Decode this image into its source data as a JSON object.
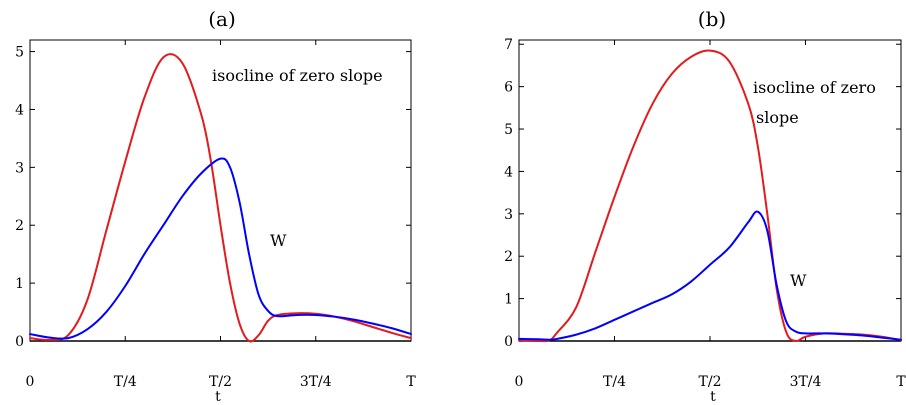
{
  "chart_data": [
    {
      "type": "line",
      "title": "(a)",
      "xlabel": "t",
      "ylabel": "",
      "xlim": [
        0,
        1
      ],
      "ylim": [
        0,
        5.2
      ],
      "x_ticks": [
        {
          "value": 0,
          "label": "0"
        },
        {
          "value": 0.25,
          "label": "T/4"
        },
        {
          "value": 0.5,
          "label": "T/2"
        },
        {
          "value": 0.75,
          "label": "3T/4"
        },
        {
          "value": 1,
          "label": "T"
        }
      ],
      "y_ticks": [
        {
          "value": 0,
          "label": "0"
        },
        {
          "value": 1,
          "label": "1"
        },
        {
          "value": 2,
          "label": "2"
        },
        {
          "value": 3,
          "label": "3"
        },
        {
          "value": 4,
          "label": "4"
        },
        {
          "value": 5,
          "label": "5"
        }
      ],
      "series": [
        {
          "name": "isocline of zero slope",
          "color": "#e41a1c",
          "x": [
            0,
            0.05,
            0.1,
            0.15,
            0.2,
            0.25,
            0.3,
            0.35,
            0.4,
            0.45,
            0.475,
            0.5,
            0.525,
            0.55,
            0.575,
            0.6,
            0.625,
            0.65,
            0.7,
            0.75,
            0.8,
            0.85,
            0.9,
            0.95,
            1
          ],
          "y": [
            0.05,
            0.02,
            0.1,
            0.7,
            1.9,
            3.1,
            4.2,
            4.9,
            4.8,
            3.9,
            3.1,
            2.0,
            1.0,
            0.3,
            0.0,
            0.1,
            0.35,
            0.45,
            0.48,
            0.47,
            0.42,
            0.34,
            0.24,
            0.14,
            0.05
          ]
        },
        {
          "name": "W",
          "color": "#0000ff",
          "x": [
            0,
            0.05,
            0.1,
            0.15,
            0.2,
            0.25,
            0.3,
            0.35,
            0.4,
            0.45,
            0.5,
            0.525,
            0.55,
            0.575,
            0.6,
            0.625,
            0.65,
            0.7,
            0.75,
            0.8,
            0.85,
            0.9,
            0.95,
            1
          ],
          "y": [
            0.12,
            0.06,
            0.05,
            0.2,
            0.5,
            0.95,
            1.5,
            2.0,
            2.5,
            2.9,
            3.15,
            3.0,
            2.4,
            1.5,
            0.8,
            0.52,
            0.43,
            0.45,
            0.45,
            0.42,
            0.37,
            0.3,
            0.22,
            0.12
          ]
        }
      ],
      "annotations": [
        "isocline of zero slope",
        "W"
      ]
    },
    {
      "type": "line",
      "title": "(b)",
      "xlabel": "t",
      "ylabel": "",
      "xlim": [
        0,
        1
      ],
      "ylim": [
        0,
        7.1
      ],
      "x_ticks": [
        {
          "value": 0,
          "label": "0"
        },
        {
          "value": 0.25,
          "label": "T/4"
        },
        {
          "value": 0.5,
          "label": "T/2"
        },
        {
          "value": 0.75,
          "label": "3T/4"
        },
        {
          "value": 1,
          "label": "T"
        }
      ],
      "y_ticks": [
        {
          "value": 0,
          "label": "0"
        },
        {
          "value": 1,
          "label": "1"
        },
        {
          "value": 2,
          "label": "2"
        },
        {
          "value": 3,
          "label": "3"
        },
        {
          "value": 4,
          "label": "4"
        },
        {
          "value": 5,
          "label": "5"
        },
        {
          "value": 6,
          "label": "6"
        },
        {
          "value": 7,
          "label": "7"
        }
      ],
      "series": [
        {
          "name": "isocline of zero slope",
          "color": "#e41a1c",
          "x": [
            0,
            0.05,
            0.08,
            0.1,
            0.15,
            0.2,
            0.25,
            0.3,
            0.35,
            0.4,
            0.45,
            0.5,
            0.55,
            0.6,
            0.625,
            0.65,
            0.675,
            0.7,
            0.725,
            0.75,
            0.8,
            0.85,
            0.9,
            0.95,
            1
          ],
          "y": [
            0.02,
            0.0,
            0.02,
            0.2,
            0.8,
            2.1,
            3.4,
            4.6,
            5.6,
            6.3,
            6.7,
            6.85,
            6.6,
            5.6,
            4.6,
            3.0,
            1.2,
            0.2,
            0.0,
            0.1,
            0.18,
            0.17,
            0.15,
            0.1,
            0.02
          ]
        },
        {
          "name": "W",
          "color": "#0000ff",
          "x": [
            0,
            0.05,
            0.08,
            0.1,
            0.15,
            0.2,
            0.25,
            0.3,
            0.35,
            0.4,
            0.45,
            0.5,
            0.55,
            0.6,
            0.625,
            0.65,
            0.675,
            0.7,
            0.725,
            0.75,
            0.8,
            0.85,
            0.9,
            0.95,
            1
          ],
          "y": [
            0.05,
            0.04,
            0.03,
            0.05,
            0.15,
            0.3,
            0.5,
            0.7,
            0.9,
            1.1,
            1.4,
            1.8,
            2.2,
            2.8,
            3.05,
            2.6,
            1.3,
            0.45,
            0.22,
            0.18,
            0.18,
            0.16,
            0.13,
            0.08,
            0.03
          ]
        }
      ],
      "annotations": [
        "isocline of zero",
        "slope",
        "W"
      ]
    }
  ]
}
